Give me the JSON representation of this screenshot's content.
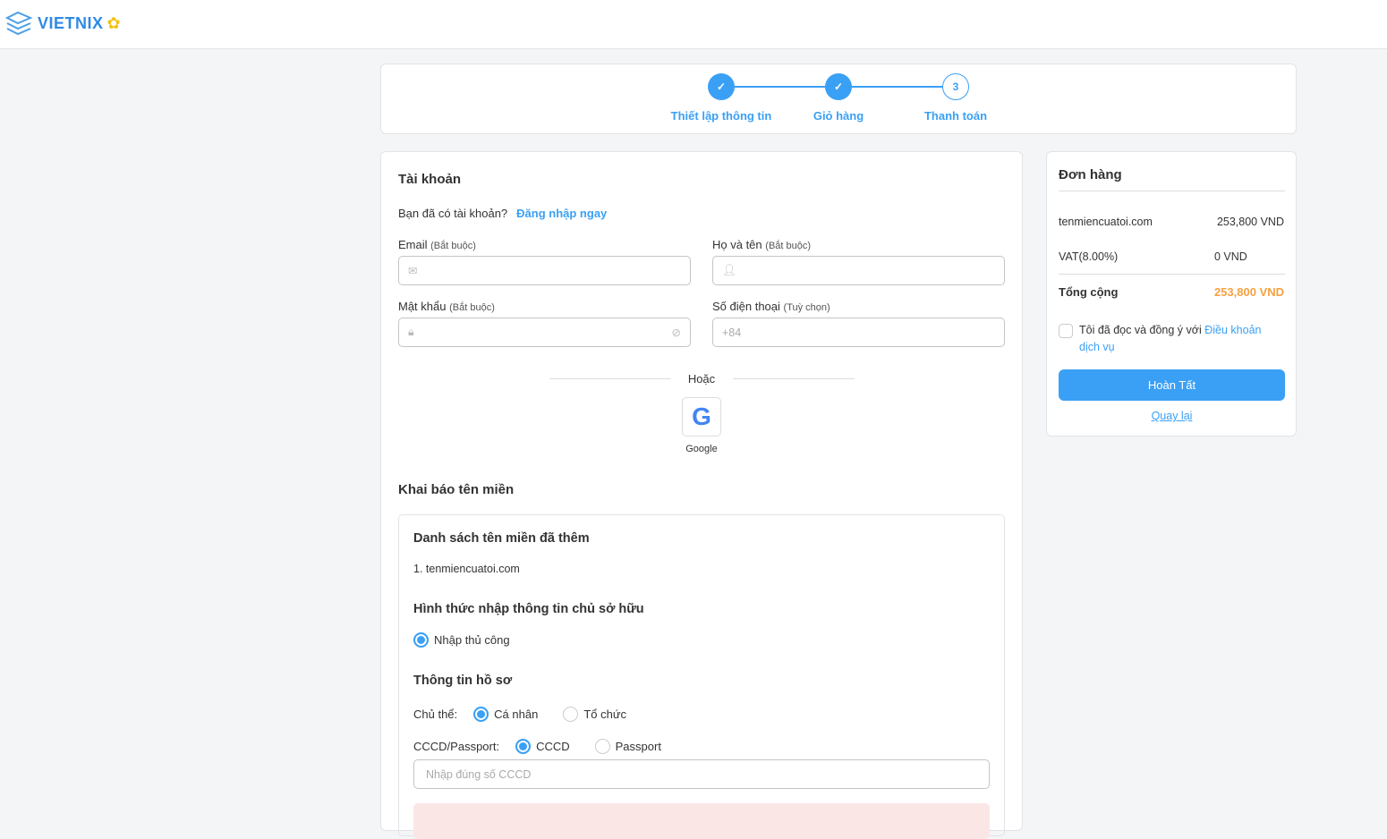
{
  "brand": {
    "logo_text": "VIETNIX"
  },
  "stepper": {
    "steps": [
      {
        "label": "Thiết lập thông tin",
        "state": "done"
      },
      {
        "label": "Giỏ hàng",
        "state": "done"
      },
      {
        "label": "Thanh toán",
        "number": "3",
        "state": "current"
      }
    ]
  },
  "account": {
    "title": "Tài khoản",
    "have_account": "Bạn đã có tài khoản?",
    "login_link": "Đăng nhập ngay",
    "email_label": "Email",
    "email_hint": "(Bắt buộc)",
    "name_label": "Họ và tên",
    "name_hint": "(Bắt buộc)",
    "password_label": "Mật khẩu",
    "password_hint": "(Bắt buộc)",
    "phone_label": "Số điện thoại",
    "phone_hint": "(Tuỳ chọn)",
    "phone_placeholder": "+84",
    "or": "Hoặc",
    "google": "Google"
  },
  "domain": {
    "title": "Khai báo tên miền",
    "list_title": "Danh sách tên miền đã thêm",
    "items": [
      "1. tenmiencuatoi.com"
    ],
    "method_title": "Hình thức nhập thông tin chủ sở hữu",
    "method_option": "Nhập thủ công",
    "profile_title": "Thông tin hồ sơ",
    "subject_label": "Chủ thể:",
    "subject_options": [
      "Cá nhân",
      "Tổ chức"
    ],
    "id_label": "CCCD/Passport:",
    "id_options": [
      "CCCD",
      "Passport"
    ],
    "id_placeholder": "Nhập đúng số CCCD"
  },
  "order": {
    "title": "Đơn hàng",
    "lines": [
      {
        "name": "tenmiencuatoi.com",
        "value": "253,800 VND"
      },
      {
        "name": "VAT(8.00%)",
        "value": "0 VND"
      }
    ],
    "total_label": "Tổng cộng",
    "total_value": "253,800 VND",
    "agree_text": "Tôi đã đọc và đồng ý với",
    "terms_link": "Điều khoản dịch vụ",
    "submit": "Hoàn Tất",
    "back": "Quay lại"
  },
  "colors": {
    "accent": "#3aa0f5",
    "total": "#f5a142"
  }
}
